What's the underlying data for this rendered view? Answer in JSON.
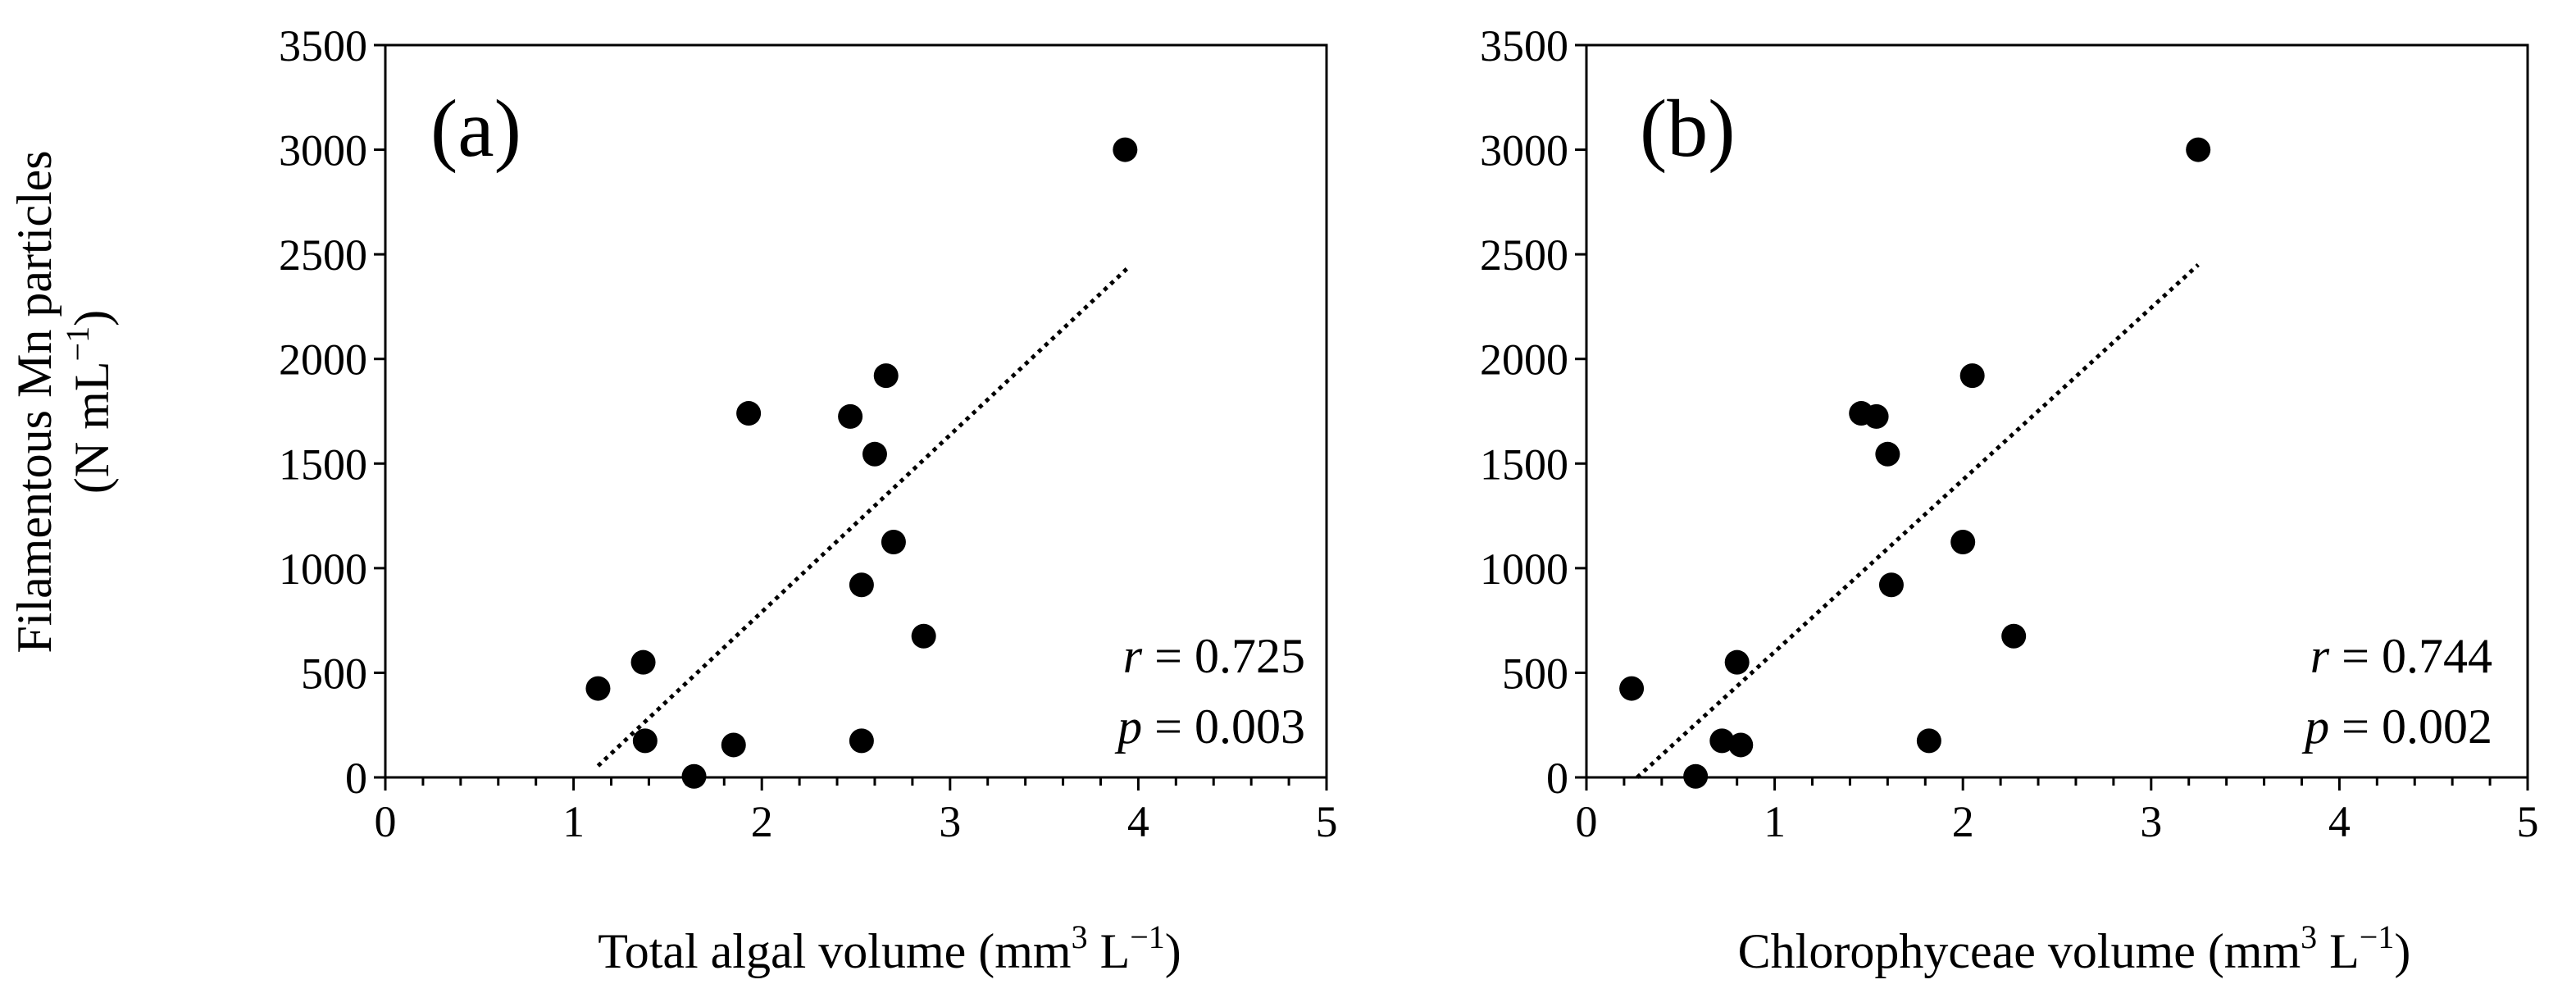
{
  "y_label": {
    "line1": "Filamentous  Mn particles",
    "line2_pre": "(N mL",
    "line2_sup": "−1",
    "line2_post": ")"
  },
  "chart_data": [
    {
      "type": "scatter",
      "panel_label": "(a)",
      "xlabel": {
        "pre": "Total algal  volume (mm",
        "sup": "3",
        "mid": " L",
        "sup2": "−1",
        "post": ")"
      },
      "xlim": [
        0,
        5
      ],
      "ylim": [
        0,
        3500
      ],
      "xticks": [
        "0",
        "1",
        "2",
        "3",
        "4",
        "5"
      ],
      "yticks": [
        "0",
        "500",
        "1000",
        "1500",
        "2000",
        "2500",
        "3000",
        "3500"
      ],
      "points": [
        {
          "x": 1.13,
          "y": 425
        },
        {
          "x": 1.37,
          "y": 550
        },
        {
          "x": 1.38,
          "y": 175
        },
        {
          "x": 1.64,
          "y": 5
        },
        {
          "x": 1.85,
          "y": 155
        },
        {
          "x": 1.93,
          "y": 1740
        },
        {
          "x": 2.47,
          "y": 1725
        },
        {
          "x": 2.53,
          "y": 920
        },
        {
          "x": 2.53,
          "y": 175
        },
        {
          "x": 2.6,
          "y": 1545
        },
        {
          "x": 2.66,
          "y": 1920
        },
        {
          "x": 2.7,
          "y": 1125
        },
        {
          "x": 2.86,
          "y": 675
        },
        {
          "x": 3.93,
          "y": 3000
        }
      ],
      "trendline": {
        "x": [
          1.13,
          3.95
        ],
        "y": [
          55,
          2440
        ],
        "style": "dotted"
      },
      "stats": {
        "r_label": "r",
        "r_value": " = 0.725",
        "p_label": "p",
        "p_value": " = 0.003"
      }
    },
    {
      "type": "scatter",
      "panel_label": "(b)",
      "xlabel": {
        "pre": "Chlorophyceae  volume (mm",
        "sup": "3",
        "mid": " L",
        "sup2": "−1",
        "post": ")"
      },
      "xlim": [
        0,
        5
      ],
      "ylim": [
        0,
        3500
      ],
      "xticks": [
        "0",
        "1",
        "2",
        "3",
        "4",
        "5"
      ],
      "yticks": [
        "0",
        "500",
        "1000",
        "1500",
        "2000",
        "2500",
        "3000",
        "3500"
      ],
      "points": [
        {
          "x": 0.24,
          "y": 425
        },
        {
          "x": 0.58,
          "y": 5
        },
        {
          "x": 0.72,
          "y": 175
        },
        {
          "x": 0.8,
          "y": 550
        },
        {
          "x": 0.82,
          "y": 155
        },
        {
          "x": 1.46,
          "y": 1740
        },
        {
          "x": 1.54,
          "y": 1725
        },
        {
          "x": 1.6,
          "y": 1545
        },
        {
          "x": 1.62,
          "y": 920
        },
        {
          "x": 1.82,
          "y": 175
        },
        {
          "x": 2.0,
          "y": 1125
        },
        {
          "x": 2.05,
          "y": 1920
        },
        {
          "x": 2.27,
          "y": 675
        },
        {
          "x": 3.25,
          "y": 3000
        }
      ],
      "trendline": {
        "x": [
          0.27,
          3.25
        ],
        "y": [
          0,
          2450
        ],
        "style": "dotted"
      },
      "stats": {
        "r_label": "r",
        "r_value": " = 0.744",
        "p_label": "p",
        "p_value": " = 0.002"
      }
    }
  ]
}
